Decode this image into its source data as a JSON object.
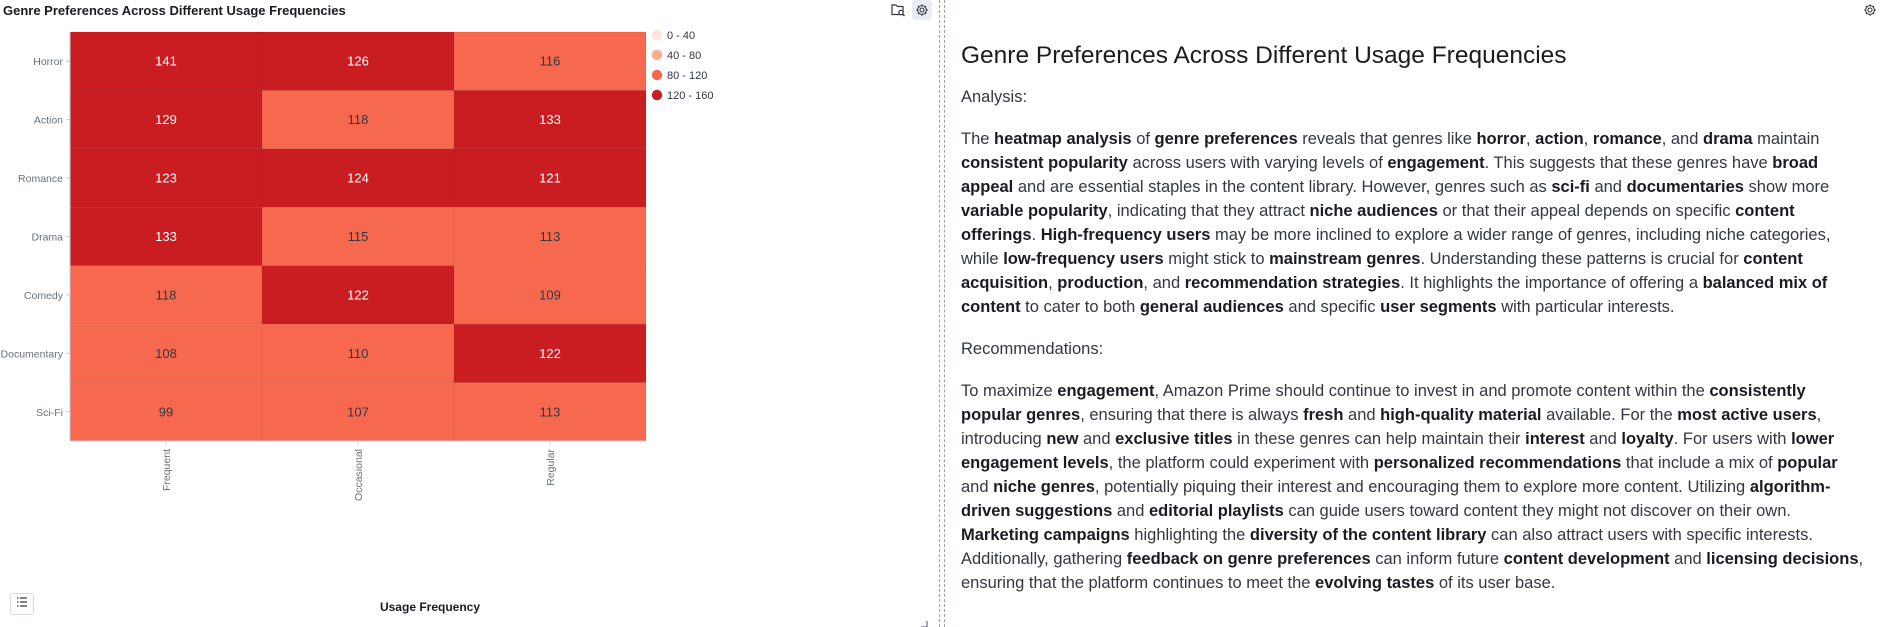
{
  "chart_panel": {
    "title": "Genre Preferences Across Different Usage Frequencies",
    "icons": {
      "inspect": "inspect-icon",
      "settings": "gear-icon",
      "legend_toggle": "list-icon"
    }
  },
  "chart_data": {
    "type": "heatmap",
    "title": "Genre Preferences Across Different Usage Frequencies",
    "xlabel": "Usage Frequency",
    "ylabel": "",
    "x_categories": [
      "Frequent",
      "Occasional",
      "Regular"
    ],
    "y_categories": [
      "Horror",
      "Action",
      "Romance",
      "Drama",
      "Comedy",
      "Documentary",
      "Sci-Fi"
    ],
    "values": [
      [
        141,
        126,
        116
      ],
      [
        129,
        118,
        133
      ],
      [
        123,
        124,
        121
      ],
      [
        133,
        115,
        113
      ],
      [
        118,
        122,
        109
      ],
      [
        108,
        110,
        122
      ],
      [
        99,
        107,
        113
      ]
    ],
    "legend": {
      "position": "top-right",
      "bands": [
        {
          "label": "0 - 40",
          "from": 0,
          "to": 40,
          "color": "#fee5d9"
        },
        {
          "label": "40 - 80",
          "from": 40,
          "to": 80,
          "color": "#fcae91"
        },
        {
          "label": "80 - 120",
          "from": 80,
          "to": 120,
          "color": "#f6694e"
        },
        {
          "label": "120 - 160",
          "from": 120,
          "to": 160,
          "color": "#c91d22"
        }
      ]
    },
    "cell_text_color_dark": "#ffffff",
    "cell_text_color_light": "#343741"
  },
  "markdown": {
    "heading": "Genre Preferences Across Different Usage Frequencies",
    "analysis_label": "Analysis:",
    "analysis_paragraph": [
      {
        "t": "The "
      },
      {
        "b": "heatmap analysis"
      },
      {
        "t": " of "
      },
      {
        "b": "genre preferences"
      },
      {
        "t": " reveals that genres like "
      },
      {
        "b": "horror"
      },
      {
        "t": ", "
      },
      {
        "b": "action"
      },
      {
        "t": ", "
      },
      {
        "b": "romance"
      },
      {
        "t": ", and "
      },
      {
        "b": "drama"
      },
      {
        "t": " maintain "
      },
      {
        "b": "consistent popularity"
      },
      {
        "t": " across users with varying levels of "
      },
      {
        "b": "engagement"
      },
      {
        "t": ". This suggests that these genres have "
      },
      {
        "b": "broad appeal"
      },
      {
        "t": " and are essential staples in the content library. However, genres such as "
      },
      {
        "b": "sci-fi"
      },
      {
        "t": " and "
      },
      {
        "b": "documentaries"
      },
      {
        "t": " show more "
      },
      {
        "b": "variable popularity"
      },
      {
        "t": ", indicating that they attract "
      },
      {
        "b": "niche audiences"
      },
      {
        "t": " or that their appeal depends on specific "
      },
      {
        "b": "content offerings"
      },
      {
        "t": ". "
      },
      {
        "b": "High-frequency users"
      },
      {
        "t": " may be more inclined to explore a wider range of genres, including niche categories, while "
      },
      {
        "b": "low-frequency users"
      },
      {
        "t": " might stick to "
      },
      {
        "b": "mainstream genres"
      },
      {
        "t": ". Understanding these patterns is crucial for "
      },
      {
        "b": "content acquisition"
      },
      {
        "t": ", "
      },
      {
        "b": "production"
      },
      {
        "t": ", and "
      },
      {
        "b": "recommendation strategies"
      },
      {
        "t": ". It highlights the importance of offering a "
      },
      {
        "b": "balanced mix of content"
      },
      {
        "t": " to cater to both "
      },
      {
        "b": "general audiences"
      },
      {
        "t": " and specific "
      },
      {
        "b": "user segments"
      },
      {
        "t": " with particular interests."
      }
    ],
    "recommendations_label": "Recommendations:",
    "recommendations_paragraph": [
      {
        "t": "To maximize "
      },
      {
        "b": "engagement"
      },
      {
        "t": ", Amazon Prime should continue to invest in and promote content within the "
      },
      {
        "b": "consistently popular genres"
      },
      {
        "t": ", ensuring that there is always "
      },
      {
        "b": "fresh"
      },
      {
        "t": " and "
      },
      {
        "b": "high-quality material"
      },
      {
        "t": " available. For the "
      },
      {
        "b": "most active users"
      },
      {
        "t": ", introducing "
      },
      {
        "b": "new"
      },
      {
        "t": " and "
      },
      {
        "b": "exclusive titles"
      },
      {
        "t": " in these genres can help maintain their "
      },
      {
        "b": "interest"
      },
      {
        "t": " and "
      },
      {
        "b": "loyalty"
      },
      {
        "t": ". For users with "
      },
      {
        "b": "lower engagement levels"
      },
      {
        "t": ", the platform could experiment with "
      },
      {
        "b": "personalized recommendations"
      },
      {
        "t": " that include a mix of "
      },
      {
        "b": "popular"
      },
      {
        "t": " and "
      },
      {
        "b": "niche genres"
      },
      {
        "t": ", potentially piquing their interest and encouraging them to explore more content. Utilizing "
      },
      {
        "b": "algorithm-driven suggestions"
      },
      {
        "t": " and "
      },
      {
        "b": "editorial playlists"
      },
      {
        "t": " can guide users toward content they might not discover on their own. "
      },
      {
        "b": "Marketing campaigns"
      },
      {
        "t": " highlighting the "
      },
      {
        "b": "diversity of the content library"
      },
      {
        "t": " can also attract users with specific interests. Additionally, gathering "
      },
      {
        "b": "feedback on genre preferences"
      },
      {
        "t": " can inform future "
      },
      {
        "b": "content development"
      },
      {
        "t": " and "
      },
      {
        "b": "licensing decisions"
      },
      {
        "t": ", ensuring that the platform continues to meet the "
      },
      {
        "b": "evolving tastes"
      },
      {
        "t": " of its user base."
      }
    ]
  }
}
